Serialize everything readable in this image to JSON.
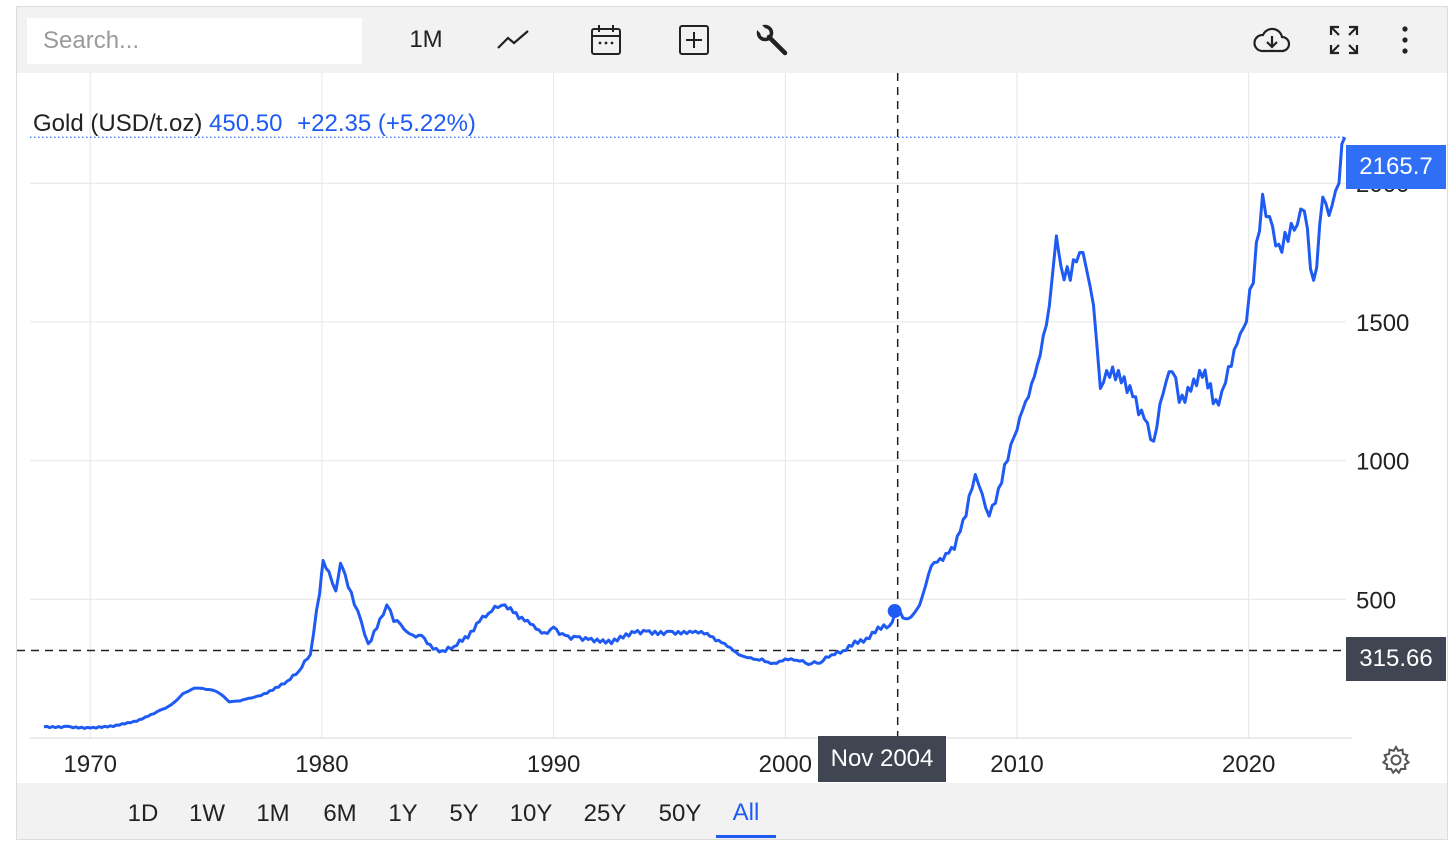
{
  "toolbar": {
    "search_placeholder": "Search...",
    "interval_label": "1M",
    "icons": [
      "line-chart-icon",
      "calendar-icon",
      "plus-box-icon",
      "wrench-icon",
      "cloud-download-icon",
      "fullscreen-icon",
      "more-vert-icon"
    ]
  },
  "legend": {
    "name": "Gold (USD/t.oz)",
    "value": "450.50",
    "change": "+22.35 (+5.22%)"
  },
  "tags": {
    "last_price": "2165.7",
    "crosshair_price": "315.66",
    "crosshair_date": "Nov 2004"
  },
  "ranges": [
    "1D",
    "1W",
    "1M",
    "6M",
    "1Y",
    "5Y",
    "10Y",
    "25Y",
    "50Y",
    "All"
  ],
  "active_range": "All",
  "colors": {
    "line": "#1f5bf3",
    "accent": "#2f6ff5",
    "tag_dark": "#3f4652"
  },
  "chart_data": {
    "type": "line",
    "title": "",
    "xlabel": "",
    "ylabel": "",
    "x_ticks": [
      "1970",
      "1980",
      "1990",
      "2000",
      "2010",
      "2020"
    ],
    "y_ticks": [
      "500",
      "1000",
      "1500",
      "2000"
    ],
    "xlim": [
      1967.4,
      2024.2
    ],
    "ylim": [
      0,
      2300
    ],
    "grid": true,
    "legend": "top-left",
    "series": [
      {
        "name": "Gold (USD/t.oz)",
        "color": "#1f5bf3",
        "x": [
          1968.0,
          1969.0,
          1970.0,
          1971.0,
          1972.0,
          1973.0,
          1973.5,
          1974.0,
          1974.5,
          1975.0,
          1975.5,
          1976.0,
          1976.7,
          1977.5,
          1978.5,
          1979.0,
          1979.5,
          1979.9,
          1980.05,
          1980.3,
          1980.6,
          1980.8,
          1981.0,
          1981.4,
          1981.7,
          1982.0,
          1982.5,
          1982.8,
          1983.1,
          1983.4,
          1983.8,
          1984.3,
          1984.8,
          1985.2,
          1985.7,
          1986.3,
          1986.8,
          1987.2,
          1987.6,
          1987.9,
          1988.5,
          1989.0,
          1989.6,
          1990.0,
          1990.5,
          1991.0,
          1991.5,
          1992.0,
          1992.5,
          1993.0,
          1993.5,
          1994.0,
          1995.0,
          1996.0,
          1996.5,
          1997.0,
          1997.5,
          1998.0,
          1998.5,
          1999.0,
          1999.5,
          2000.0,
          2000.5,
          2001.0,
          2001.5,
          2002.0,
          2002.5,
          2003.0,
          2003.5,
          2004.0,
          2004.5,
          2004.85,
          2005.3,
          2005.8,
          2006.3,
          2006.8,
          2007.3,
          2007.8,
          2008.2,
          2008.5,
          2008.8,
          2009.2,
          2009.6,
          2010.0,
          2010.5,
          2011.0,
          2011.4,
          2011.7,
          2011.9,
          2012.3,
          2012.7,
          2013.0,
          2013.3,
          2013.6,
          2014.0,
          2014.5,
          2015.0,
          2015.5,
          2015.9,
          2016.3,
          2016.7,
          2017.0,
          2017.5,
          2018.0,
          2018.7,
          2019.0,
          2019.5,
          2019.9,
          2020.2,
          2020.6,
          2020.9,
          2021.3,
          2021.7,
          2022.1,
          2022.4,
          2022.8,
          2023.2,
          2023.6,
          2023.9,
          2024.15
        ],
        "y": [
          40,
          42,
          36,
          41,
          60,
          100,
          120,
          160,
          180,
          175,
          165,
          130,
          140,
          160,
          205,
          240,
          300,
          520,
          640,
          600,
          530,
          630,
          590,
          480,
          420,
          340,
          430,
          480,
          420,
          410,
          375,
          370,
          320,
          315,
          330,
          360,
          420,
          450,
          470,
          480,
          430,
          410,
          380,
          400,
          370,
          365,
          355,
          345,
          340,
          360,
          380,
          385,
          385,
          380,
          375,
          350,
          330,
          300,
          290,
          285,
          270,
          285,
          280,
          265,
          270,
          300,
          315,
          350,
          360,
          400,
          405,
          450,
          430,
          480,
          620,
          640,
          680,
          800,
          950,
          880,
          800,
          900,
          1000,
          1110,
          1230,
          1380,
          1560,
          1810,
          1700,
          1650,
          1750,
          1690,
          1560,
          1260,
          1300,
          1280,
          1230,
          1150,
          1070,
          1240,
          1320,
          1210,
          1250,
          1300,
          1200,
          1280,
          1420,
          1500,
          1640,
          1960,
          1880,
          1780,
          1790,
          1850,
          1900,
          1650,
          1950,
          1920,
          2000,
          2165.7
        ]
      }
    ]
  }
}
